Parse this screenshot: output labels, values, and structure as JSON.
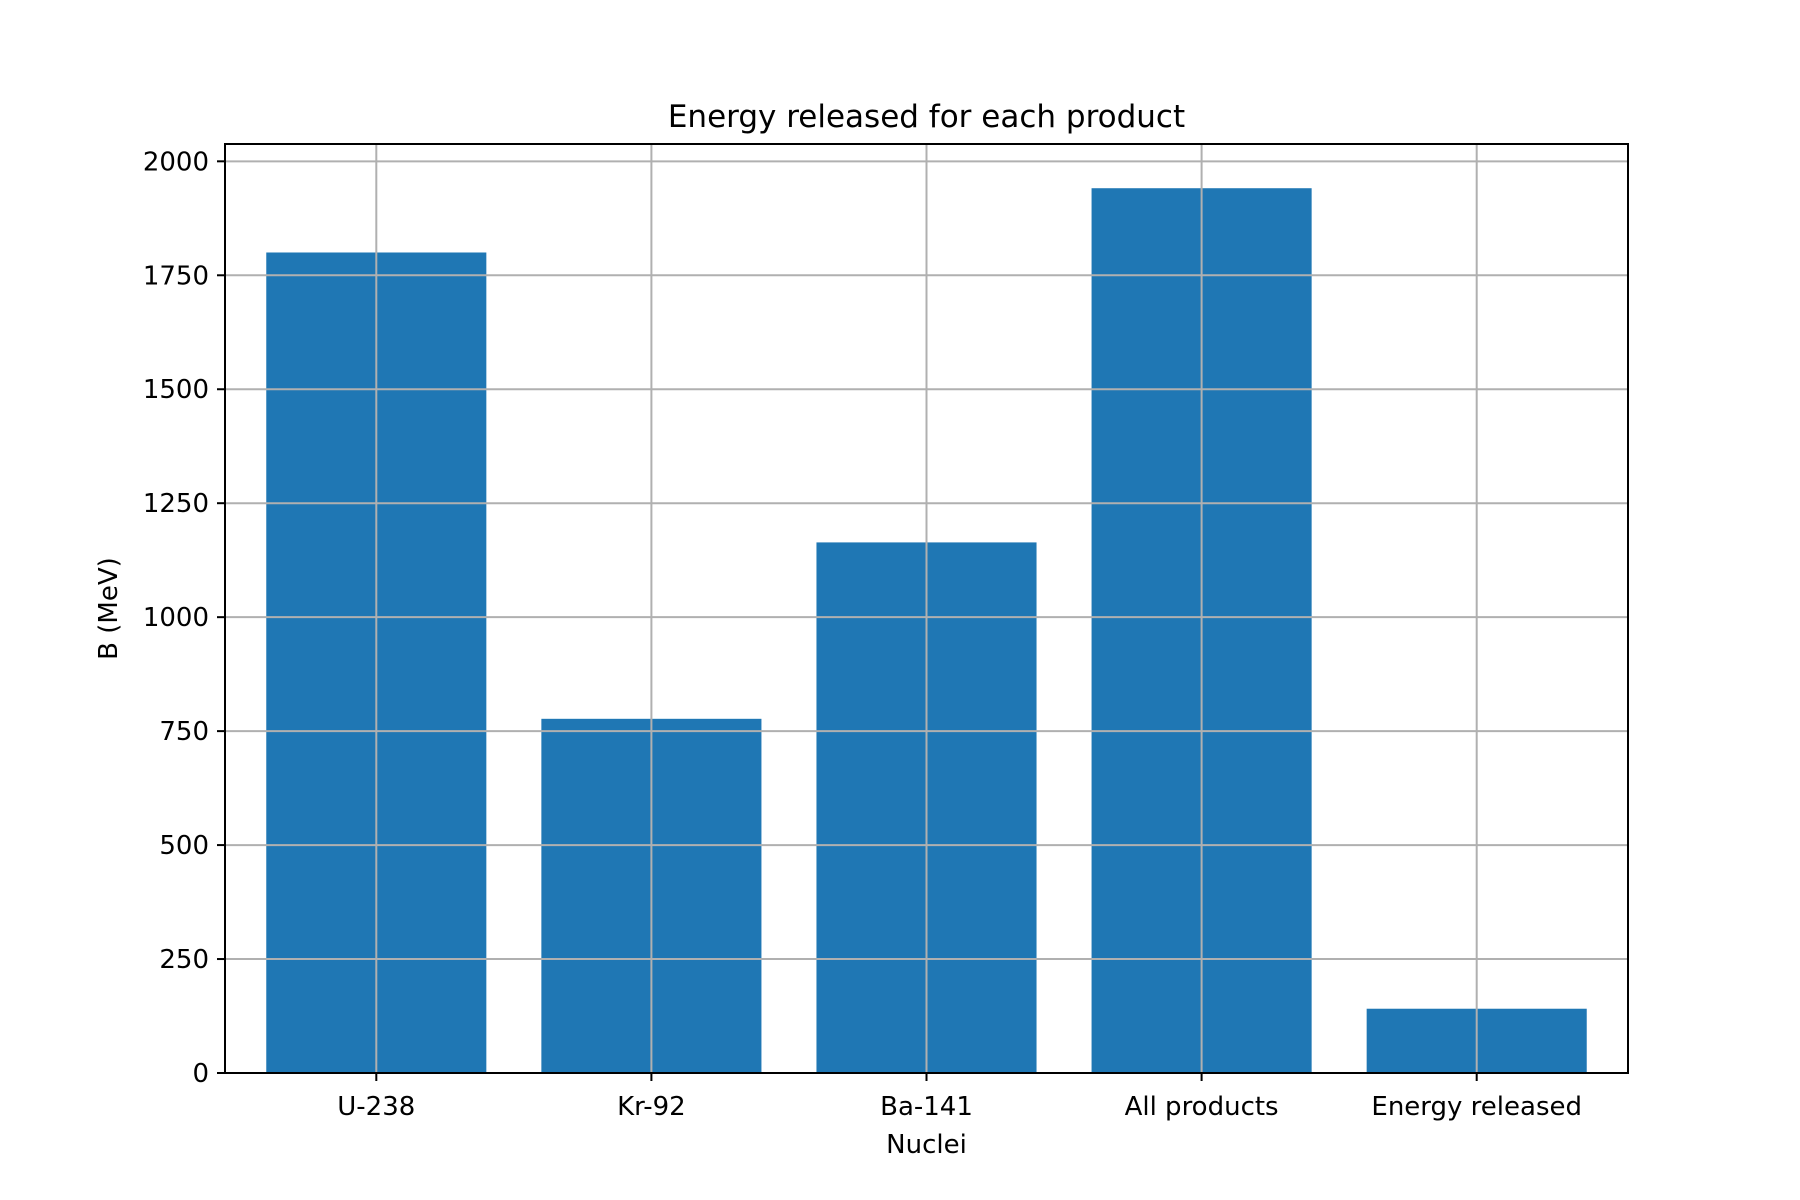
{
  "chart_data": {
    "type": "bar",
    "title": "Energy released for each product",
    "xlabel": "Nuclei",
    "ylabel": "B (MeV)",
    "categories": [
      "U-238",
      "Kr-92",
      "Ba-141",
      "All products",
      "Energy released"
    ],
    "values": [
      1800,
      777,
      1164,
      1941,
      141
    ],
    "ylim": [
      0,
      2038
    ],
    "yticks": [
      0,
      250,
      500,
      750,
      1000,
      1250,
      1500,
      1750,
      2000
    ],
    "grid": true,
    "colors": {
      "bar": "#1f77b4",
      "grid": "#b0b0b0",
      "axes": "#000000"
    }
  }
}
